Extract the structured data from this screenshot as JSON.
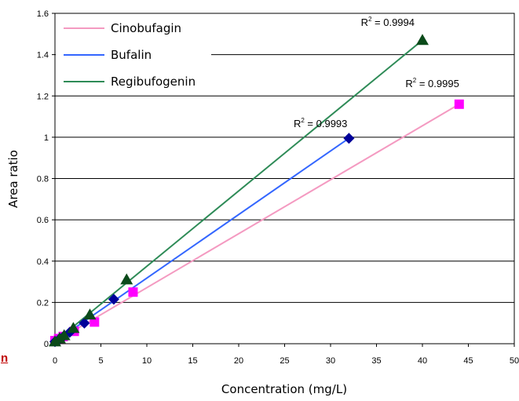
{
  "chart_data": {
    "type": "scatter",
    "xlabel": "Concentration (mg/L)",
    "ylabel": "Area ratio",
    "xlim": [
      0,
      50
    ],
    "ylim": [
      0,
      1.6
    ],
    "x_ticks": [
      "0",
      "5",
      "10",
      "15",
      "20",
      "25",
      "30",
      "35",
      "40",
      "45",
      "50"
    ],
    "y_ticks": [
      "0",
      "0.2",
      "0.4",
      "0.6",
      "0.8",
      "1",
      "1.2",
      "1.4",
      "1.6"
    ],
    "grid": "horizontal",
    "legend_position": "top-left",
    "series": [
      {
        "name": "Cinobufagin",
        "color": "#f49ac1",
        "marker_color": "#ff00ff",
        "marker": "square",
        "x": [
          0,
          0.4,
          0.9,
          2.1,
          4.3,
          8.5,
          44
        ],
        "y": [
          0.015,
          0.025,
          0.035,
          0.06,
          0.105,
          0.25,
          1.16
        ],
        "fit_line": [
          [
            0,
            0.01
          ],
          [
            44,
            1.16
          ]
        ],
        "r2_prefix": "R",
        "r2_exp": "2",
        "r2_value": " = 0.9995"
      },
      {
        "name": "Bufalin",
        "color": "#3366ff",
        "marker_color": "#000099",
        "marker": "diamond",
        "x": [
          0,
          0.4,
          0.8,
          1.6,
          3.2,
          6.4,
          32
        ],
        "y": [
          0.01,
          0.02,
          0.03,
          0.055,
          0.1,
          0.215,
          0.995
        ],
        "fit_line": [
          [
            0,
            0.01
          ],
          [
            32,
            0.995
          ]
        ],
        "r2_prefix": "R",
        "r2_exp": "2",
        "r2_value": " = 0.9993"
      },
      {
        "name": "Regibufogenin",
        "color": "#2e8b57",
        "marker_color": "#0b4a1a",
        "marker": "triangle",
        "x": [
          0,
          0.5,
          1,
          2,
          3.8,
          7.8,
          40
        ],
        "y": [
          0.01,
          0.025,
          0.04,
          0.075,
          0.14,
          0.31,
          1.47
        ],
        "fit_line": [
          [
            0,
            0.01
          ],
          [
            40,
            1.47
          ]
        ],
        "r2_prefix": "R",
        "r2_exp": "2",
        "r2_value": " = 0.9994"
      }
    ]
  },
  "corner_mark": "n"
}
